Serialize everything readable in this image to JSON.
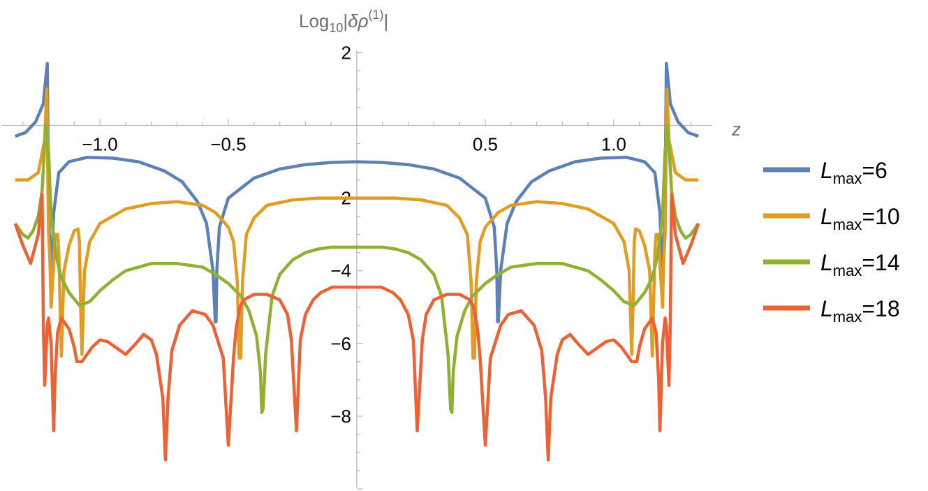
{
  "chart_data": {
    "type": "line",
    "title": "",
    "xlabel": "z",
    "ylabel": "Log10|δρ(1)|",
    "ylabel_parts": {
      "base": "Log",
      "base_sub": "10",
      "bar_open": "|",
      "symbol": "δρ",
      "sup": "(1)",
      "bar_close": "|"
    },
    "xlim": [
      -1.34,
      1.34
    ],
    "ylim": [
      -10,
      2.2
    ],
    "x_ticks": [
      -1.0,
      -0.5,
      0.5,
      1.0
    ],
    "x_tick_labels": [
      "−1.0",
      "−0.5",
      "0.5",
      "1.0"
    ],
    "y_ticks": [
      2,
      -2,
      -4,
      -6,
      -8
    ],
    "y_tick_labels": [
      "2",
      "−2",
      "−4",
      "−6",
      "−8"
    ],
    "grid": false,
    "legend_position": "right",
    "series": [
      {
        "name": "Lmax=6",
        "label_main": "L",
        "label_sub": "max",
        "label_rest": "=6",
        "color": "#5e81b5",
        "x": [
          -1.33,
          -1.29,
          -1.25,
          -1.22,
          -1.215,
          -1.205,
          -1.2,
          -1.195,
          -1.19,
          -1.18,
          -1.16,
          -1.12,
          -1.05,
          -0.95,
          -0.85,
          -0.75,
          -0.68,
          -0.62,
          -0.585,
          -0.56,
          -0.551,
          -0.548,
          -0.545,
          -0.535,
          -0.5,
          -0.4,
          -0.3,
          -0.2,
          -0.1,
          0,
          0.1,
          0.2,
          0.3,
          0.4,
          0.5,
          0.535,
          0.545,
          0.548,
          0.551,
          0.56,
          0.585,
          0.62,
          0.68,
          0.75,
          0.85,
          0.95,
          1.05,
          1.12,
          1.16,
          1.18,
          1.19,
          1.195,
          1.2,
          1.205,
          1.215,
          1.22,
          1.25,
          1.29,
          1.33
        ],
        "y": [
          -0.3,
          -0.2,
          0.1,
          0.6,
          1.0,
          1.7,
          -2.0,
          -3.5,
          -4.2,
          -2.4,
          -1.3,
          -1.0,
          -0.88,
          -0.9,
          -1.0,
          -1.25,
          -1.55,
          -2.1,
          -2.7,
          -4.0,
          -5.4,
          -5.4,
          -4.0,
          -2.8,
          -2.0,
          -1.45,
          -1.2,
          -1.08,
          -1.02,
          -1.0,
          -1.02,
          -1.08,
          -1.2,
          -1.45,
          -2.0,
          -2.8,
          -4.0,
          -5.4,
          -5.4,
          -4.0,
          -2.7,
          -2.1,
          -1.55,
          -1.25,
          -1.0,
          -0.9,
          -0.88,
          -1.0,
          -1.3,
          -2.4,
          -4.2,
          -3.5,
          -2.0,
          1.7,
          1.0,
          0.6,
          0.1,
          -0.2,
          -0.3
        ]
      },
      {
        "name": "Lmax=10",
        "label_main": "L",
        "label_sub": "max",
        "label_rest": "=10",
        "color": "#e19c24",
        "x": [
          -1.33,
          -1.28,
          -1.24,
          -1.215,
          -1.207,
          -1.2,
          -1.195,
          -1.19,
          -1.18,
          -1.175,
          -1.165,
          -1.16,
          -1.155,
          -1.15,
          -1.14,
          -1.12,
          -1.1,
          -1.085,
          -1.08,
          -1.075,
          -1.07,
          -1.06,
          -1.04,
          -1.0,
          -0.9,
          -0.8,
          -0.7,
          -0.6,
          -0.55,
          -0.5,
          -0.48,
          -0.465,
          -0.458,
          -0.452,
          -0.445,
          -0.43,
          -0.4,
          -0.35,
          -0.25,
          -0.15,
          -0.05,
          0,
          0.05,
          0.15,
          0.25,
          0.35,
          0.4,
          0.43,
          0.445,
          0.452,
          0.458,
          0.465,
          0.48,
          0.5,
          0.55,
          0.6,
          0.7,
          0.8,
          0.9,
          1.0,
          1.04,
          1.06,
          1.07,
          1.075,
          1.08,
          1.085,
          1.1,
          1.12,
          1.14,
          1.15,
          1.155,
          1.16,
          1.165,
          1.175,
          1.18,
          1.19,
          1.195,
          1.2,
          1.207,
          1.215,
          1.24,
          1.28,
          1.33
        ],
        "y": [
          -1.5,
          -1.5,
          -1.3,
          -0.4,
          1.0,
          -3.0,
          -3.6,
          -5.0,
          -3.8,
          -3.0,
          -3.0,
          -3.5,
          -5.0,
          -6.35,
          -4.0,
          -3.3,
          -2.9,
          -2.85,
          -3.2,
          -5.0,
          -6.3,
          -4.0,
          -3.2,
          -2.7,
          -2.3,
          -2.15,
          -2.1,
          -2.2,
          -2.4,
          -2.8,
          -3.2,
          -4.3,
          -6.4,
          -6.4,
          -4.3,
          -3.0,
          -2.55,
          -2.2,
          -2.05,
          -2.0,
          -2.0,
          -2.0,
          -2.0,
          -2.0,
          -2.05,
          -2.2,
          -2.55,
          -3.0,
          -4.3,
          -6.4,
          -6.4,
          -4.3,
          -3.2,
          -2.8,
          -2.4,
          -2.2,
          -2.1,
          -2.15,
          -2.3,
          -2.7,
          -3.2,
          -4.0,
          -6.3,
          -5.0,
          -3.2,
          -2.85,
          -2.9,
          -3.3,
          -4.0,
          -6.35,
          -5.0,
          -3.5,
          -3.0,
          -3.0,
          -3.8,
          -5.0,
          -3.6,
          -3.0,
          1.0,
          -0.4,
          -1.3,
          -1.5,
          -1.5
        ]
      },
      {
        "name": "Lmax=14",
        "label_main": "L",
        "label_sub": "max",
        "label_rest": "=14",
        "color": "#8fb032",
        "x": [
          -1.33,
          -1.3,
          -1.28,
          -1.26,
          -1.24,
          -1.225,
          -1.215,
          -1.21,
          -1.2,
          -1.19,
          -1.17,
          -1.15,
          -1.12,
          -1.08,
          -1.04,
          -1.0,
          -0.95,
          -0.9,
          -0.8,
          -0.7,
          -0.6,
          -0.55,
          -0.5,
          -0.45,
          -0.42,
          -0.39,
          -0.375,
          -0.37,
          -0.365,
          -0.355,
          -0.33,
          -0.3,
          -0.25,
          -0.2,
          -0.15,
          -0.1,
          -0.05,
          0,
          0.05,
          0.1,
          0.15,
          0.2,
          0.25,
          0.3,
          0.33,
          0.355,
          0.365,
          0.37,
          0.375,
          0.39,
          0.42,
          0.45,
          0.5,
          0.55,
          0.6,
          0.7,
          0.8,
          0.9,
          0.95,
          1.0,
          1.04,
          1.08,
          1.12,
          1.15,
          1.17,
          1.19,
          1.2,
          1.21,
          1.215,
          1.225,
          1.24,
          1.26,
          1.28,
          1.3,
          1.33
        ],
        "y": [
          -2.7,
          -3.0,
          -3.1,
          -2.9,
          -2.5,
          -1.8,
          -0.5,
          0.0,
          -0.7,
          -2.5,
          -3.6,
          -4.2,
          -4.6,
          -4.95,
          -4.85,
          -4.55,
          -4.25,
          -4.0,
          -3.8,
          -3.8,
          -3.9,
          -4.1,
          -4.35,
          -4.7,
          -5.1,
          -5.8,
          -6.8,
          -7.9,
          -7.8,
          -6.3,
          -4.7,
          -4.1,
          -3.7,
          -3.5,
          -3.4,
          -3.35,
          -3.35,
          -3.35,
          -3.35,
          -3.35,
          -3.4,
          -3.5,
          -3.7,
          -4.1,
          -4.7,
          -6.3,
          -7.8,
          -7.9,
          -6.8,
          -5.8,
          -5.1,
          -4.7,
          -4.35,
          -4.1,
          -3.9,
          -3.8,
          -3.8,
          -4.0,
          -4.25,
          -4.55,
          -4.85,
          -4.95,
          -4.6,
          -4.2,
          -3.6,
          -2.5,
          -0.7,
          0.0,
          -0.5,
          -1.8,
          -2.5,
          -2.9,
          -3.1,
          -3.0,
          -2.7
        ]
      },
      {
        "name": "Lmax=18",
        "label_main": "L",
        "label_sub": "max",
        "label_rest": "=18",
        "color": "#eb6235",
        "x": [
          -1.33,
          -1.3,
          -1.27,
          -1.24,
          -1.225,
          -1.22,
          -1.215,
          -1.205,
          -1.2,
          -1.19,
          -1.18,
          -1.175,
          -1.165,
          -1.15,
          -1.12,
          -1.1,
          -1.09,
          -1.07,
          -1.03,
          -1.0,
          -0.97,
          -0.93,
          -0.9,
          -0.86,
          -0.83,
          -0.8,
          -0.78,
          -0.755,
          -0.745,
          -0.735,
          -0.72,
          -0.69,
          -0.64,
          -0.59,
          -0.56,
          -0.52,
          -0.5,
          -0.48,
          -0.47,
          -0.455,
          -0.44,
          -0.4,
          -0.35,
          -0.3,
          -0.27,
          -0.255,
          -0.235,
          -0.22,
          -0.2,
          -0.17,
          -0.14,
          -0.11,
          -0.095,
          -0.08,
          -0.05,
          0,
          0.05,
          0.08,
          0.095,
          0.11,
          0.14,
          0.17,
          0.2,
          0.22,
          0.235,
          0.255,
          0.27,
          0.3,
          0.35,
          0.4,
          0.44,
          0.455,
          0.47,
          0.48,
          0.5,
          0.52,
          0.56,
          0.59,
          0.64,
          0.69,
          0.72,
          0.735,
          0.745,
          0.755,
          0.78,
          0.8,
          0.83,
          0.86,
          0.9,
          0.93,
          0.97,
          1.0,
          1.03,
          1.07,
          1.09,
          1.1,
          1.12,
          1.15,
          1.165,
          1.175,
          1.18,
          1.19,
          1.2,
          1.205,
          1.215,
          1.22,
          1.225,
          1.24,
          1.27,
          1.3,
          1.33
        ],
        "y": [
          -2.7,
          -3.3,
          -3.8,
          -3.0,
          -1.9,
          -5.5,
          -7.15,
          -5.5,
          -5.3,
          -6.0,
          -8.4,
          -7.0,
          -5.7,
          -5.3,
          -5.6,
          -6.1,
          -6.5,
          -6.5,
          -6.1,
          -5.9,
          -5.95,
          -6.15,
          -6.3,
          -6.0,
          -5.75,
          -5.9,
          -6.3,
          -7.5,
          -9.2,
          -7.5,
          -6.2,
          -5.5,
          -5.1,
          -5.2,
          -5.5,
          -6.4,
          -8.8,
          -6.4,
          -5.6,
          -5.0,
          -4.8,
          -4.65,
          -4.65,
          -4.8,
          -5.2,
          -5.9,
          -8.4,
          -5.9,
          -5.2,
          -4.8,
          -4.6,
          -4.5,
          -4.45,
          -4.45,
          -4.45,
          -4.45,
          -4.45,
          -4.45,
          -4.45,
          -4.5,
          -4.6,
          -4.8,
          -5.2,
          -5.9,
          -8.4,
          -5.9,
          -5.2,
          -4.8,
          -4.65,
          -4.65,
          -4.8,
          -5.0,
          -5.6,
          -6.4,
          -8.8,
          -6.4,
          -5.5,
          -5.2,
          -5.1,
          -5.5,
          -6.2,
          -7.5,
          -9.2,
          -7.5,
          -6.3,
          -5.9,
          -5.75,
          -6.0,
          -6.3,
          -6.15,
          -5.95,
          -5.9,
          -6.1,
          -6.5,
          -6.5,
          -6.1,
          -5.6,
          -5.3,
          -5.7,
          -7.0,
          -8.4,
          -6.0,
          -5.3,
          -5.5,
          -7.15,
          -5.5,
          -1.9,
          -3.0,
          -3.8,
          -3.3,
          -2.7
        ]
      }
    ]
  }
}
